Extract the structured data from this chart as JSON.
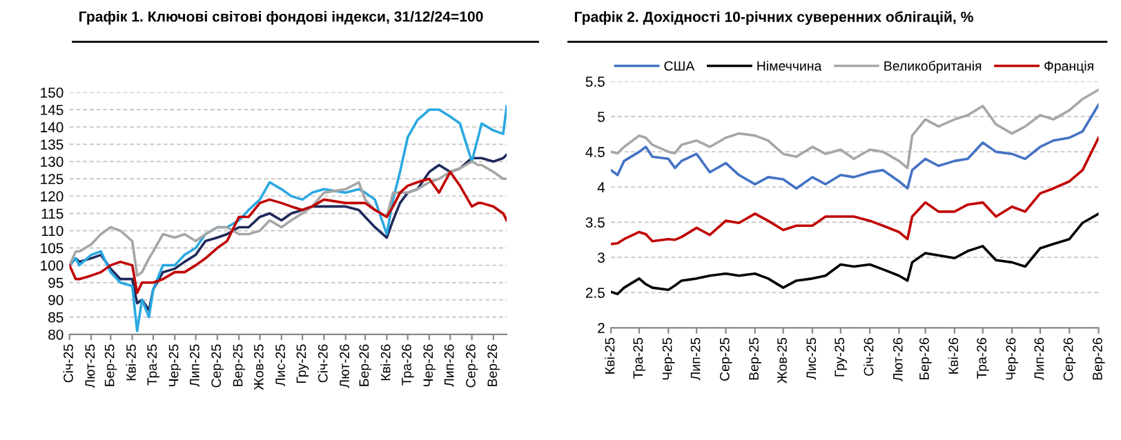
{
  "chart_data": [
    {
      "type": "line",
      "title": "Графік 1. Ключові світові фондові індекси, 31/12/24=100",
      "x": [
        "2025-01-01",
        "2025-01-10",
        "2025-01-15",
        "2025-02-01",
        "2025-02-15",
        "2025-03-01",
        "2025-03-15",
        "2025-04-01",
        "2025-04-08",
        "2025-04-15",
        "2025-04-25",
        "2025-05-01",
        "2025-05-15",
        "2025-06-01",
        "2025-06-15",
        "2025-07-01",
        "2025-07-15",
        "2025-08-01",
        "2025-08-15",
        "2025-09-01",
        "2025-09-15",
        "2025-10-01",
        "2025-10-15",
        "2025-11-01",
        "2025-11-15",
        "2025-12-01",
        "2025-12-15",
        "2026-01-01",
        "2026-02-01",
        "2026-02-20",
        "2026-03-01",
        "2026-03-15",
        "2026-04-01",
        "2026-04-10",
        "2026-04-20",
        "2026-05-01",
        "2026-05-15",
        "2026-06-01",
        "2026-06-15",
        "2026-07-01",
        "2026-07-15",
        "2026-08-01",
        "2026-08-10",
        "2026-08-15",
        "2026-09-01",
        "2026-09-15",
        "2026-09-20"
      ],
      "series": [
        {
          "color": "#1f2a5c",
          "values": [
            100,
            102,
            101,
            102,
            103,
            99,
            96,
            96,
            89,
            90,
            87,
            93,
            98,
            99,
            101,
            103,
            107,
            108,
            109,
            111,
            111,
            114,
            115,
            113,
            115,
            116,
            117,
            117,
            117,
            116,
            114,
            111,
            108,
            113,
            118,
            121,
            122,
            127,
            129,
            127,
            128,
            131,
            131,
            131,
            130,
            131,
            132
          ]
        },
        {
          "color": "#2aa8e0",
          "values": [
            100,
            102,
            100,
            103,
            104,
            98,
            95,
            94,
            81,
            90,
            85,
            93,
            100,
            100,
            103,
            105,
            109,
            111,
            111,
            113,
            116,
            119,
            124,
            122,
            120,
            119,
            121,
            122,
            121,
            122,
            121,
            119,
            109,
            119,
            127,
            137,
            142,
            145,
            145,
            143,
            141,
            130,
            137,
            141,
            139,
            138,
            146
          ]
        },
        {
          "color": "#a6a6a6",
          "values": [
            100,
            104,
            104,
            106,
            109,
            111,
            110,
            107,
            97,
            98,
            102,
            104,
            109,
            108,
            109,
            107,
            109,
            111,
            111,
            109,
            109,
            110,
            113,
            111,
            113,
            115,
            117,
            121,
            122,
            124,
            119,
            116,
            114,
            121,
            121,
            121,
            122,
            124,
            125,
            127,
            128,
            130,
            129,
            129,
            127,
            125,
            125
          ]
        },
        {
          "color": "#c00000",
          "values": [
            100,
            96,
            96,
            97,
            98,
            100,
            101,
            100,
            92,
            95,
            95,
            95,
            96,
            98,
            98,
            100,
            102,
            105,
            107,
            114,
            114,
            118,
            119,
            118,
            117,
            116,
            117,
            119,
            118,
            118,
            118,
            116,
            114,
            117,
            121,
            123,
            124,
            125,
            121,
            127,
            123,
            117,
            118,
            118,
            117,
            115,
            113
          ]
        }
      ],
      "xlim": [
        "2025-01-01",
        "2026-09-20"
      ],
      "xticks": [
        {
          "value": "2025-01-01",
          "label": "Січ-25"
        },
        {
          "value": "2025-02-01",
          "label": "Лют-25"
        },
        {
          "value": "2025-03-01",
          "label": "Бер-25"
        },
        {
          "value": "2025-04-01",
          "label": "Кві-25"
        },
        {
          "value": "2025-05-01",
          "label": "Тра-25"
        },
        {
          "value": "2025-06-01",
          "label": "Чер-25"
        },
        {
          "value": "2025-07-01",
          "label": "Лип-25"
        },
        {
          "value": "2025-08-01",
          "label": "Сер-25"
        },
        {
          "value": "2025-09-01",
          "label": "Вер-25"
        },
        {
          "value": "2025-10-01",
          "label": "Жов-25"
        },
        {
          "value": "2025-11-01",
          "label": "Лис-25"
        },
        {
          "value": "2025-12-01",
          "label": "Гру-25"
        },
        {
          "value": "2026-01-01",
          "label": "Січ-26"
        },
        {
          "value": "2026-02-01",
          "label": "Лют-26"
        },
        {
          "value": "2026-03-01",
          "label": "Бер-26"
        },
        {
          "value": "2026-04-01",
          "label": "Кві-26"
        },
        {
          "value": "2026-05-01",
          "label": "Тра-26"
        },
        {
          "value": "2026-06-01",
          "label": "Чер-26"
        },
        {
          "value": "2026-07-01",
          "label": "Лип-26"
        },
        {
          "value": "2026-08-01",
          "label": "Сер-26"
        },
        {
          "value": "2026-09-01",
          "label": "Вер-26"
        }
      ],
      "ylim": [
        80,
        150
      ],
      "yticks": [
        80,
        85,
        90,
        95,
        100,
        105,
        110,
        115,
        120,
        125,
        130,
        135,
        140,
        145,
        150
      ],
      "grid": "y"
    },
    {
      "type": "line",
      "title": "Графік 2. Дохідності 10-річних суверенних облігацій, %",
      "x": [
        "2025-04-01",
        "2025-04-08",
        "2025-04-15",
        "2025-05-01",
        "2025-05-08",
        "2025-05-15",
        "2025-06-01",
        "2025-06-08",
        "2025-06-15",
        "2025-07-01",
        "2025-07-15",
        "2025-08-01",
        "2025-08-15",
        "2025-09-01",
        "2025-09-15",
        "2025-10-01",
        "2025-10-15",
        "2025-11-01",
        "2025-11-15",
        "2025-12-01",
        "2025-12-15",
        "2026-01-01",
        "2026-01-15",
        "2026-02-01",
        "2026-02-10",
        "2026-02-15",
        "2026-03-01",
        "2026-03-15",
        "2026-04-01",
        "2026-04-15",
        "2026-05-01",
        "2026-05-15",
        "2026-06-01",
        "2026-06-15",
        "2026-07-01",
        "2026-07-15",
        "2026-08-01",
        "2026-08-15",
        "2026-09-01"
      ],
      "series": [
        {
          "name": "США",
          "color": "#4472c4",
          "values": [
            4.24,
            4.17,
            4.37,
            4.5,
            4.57,
            4.43,
            4.4,
            4.27,
            4.37,
            4.47,
            4.21,
            4.34,
            4.17,
            4.04,
            4.14,
            4.11,
            3.98,
            4.14,
            4.04,
            4.17,
            4.14,
            4.21,
            4.24,
            4.08,
            3.98,
            4.24,
            4.4,
            4.3,
            4.37,
            4.4,
            4.63,
            4.5,
            4.47,
            4.4,
            4.57,
            4.66,
            4.7,
            4.79,
            5.17
          ]
        },
        {
          "name": "Німеччина",
          "color": "#000000",
          "values": [
            2.51,
            2.48,
            2.57,
            2.7,
            2.62,
            2.57,
            2.54,
            2.6,
            2.67,
            2.7,
            2.74,
            2.77,
            2.74,
            2.77,
            2.7,
            2.57,
            2.67,
            2.7,
            2.74,
            2.9,
            2.87,
            2.9,
            2.83,
            2.74,
            2.67,
            2.93,
            3.06,
            3.03,
            2.99,
            3.09,
            3.16,
            2.96,
            2.93,
            2.87,
            3.13,
            3.19,
            3.26,
            3.49,
            3.62
          ]
        },
        {
          "name": "Великобританія",
          "color": "#a6a6a6",
          "values": [
            4.5,
            4.48,
            4.57,
            4.73,
            4.7,
            4.6,
            4.5,
            4.48,
            4.6,
            4.66,
            4.57,
            4.7,
            4.76,
            4.73,
            4.66,
            4.47,
            4.43,
            4.57,
            4.47,
            4.53,
            4.4,
            4.53,
            4.5,
            4.37,
            4.27,
            4.73,
            4.96,
            4.86,
            4.96,
            5.02,
            5.15,
            4.89,
            4.76,
            4.86,
            5.02,
            4.96,
            5.09,
            5.25,
            5.38
          ]
        },
        {
          "name": "Франція",
          "color": "#c00000",
          "values": [
            3.19,
            3.2,
            3.26,
            3.36,
            3.33,
            3.23,
            3.26,
            3.25,
            3.29,
            3.42,
            3.32,
            3.52,
            3.49,
            3.62,
            3.52,
            3.39,
            3.45,
            3.45,
            3.58,
            3.58,
            3.58,
            3.52,
            3.45,
            3.36,
            3.26,
            3.58,
            3.78,
            3.65,
            3.65,
            3.75,
            3.78,
            3.58,
            3.72,
            3.65,
            3.91,
            3.98,
            4.08,
            4.24,
            4.7
          ]
        }
      ],
      "xlim": [
        "2025-04-01",
        "2026-09-01"
      ],
      "xticks": [
        {
          "value": "2025-04-01",
          "label": "Кві-25"
        },
        {
          "value": "2025-05-01",
          "label": "Тра-25"
        },
        {
          "value": "2025-06-01",
          "label": "Чер-25"
        },
        {
          "value": "2025-07-01",
          "label": "Лип-25"
        },
        {
          "value": "2025-08-01",
          "label": "Сер-25"
        },
        {
          "value": "2025-09-01",
          "label": "Вер-25"
        },
        {
          "value": "2025-10-01",
          "label": "Жов-25"
        },
        {
          "value": "2025-11-01",
          "label": "Лис-25"
        },
        {
          "value": "2025-12-01",
          "label": "Гру-25"
        },
        {
          "value": "2026-01-01",
          "label": "Січ-26"
        },
        {
          "value": "2026-02-01",
          "label": "Лют-26"
        },
        {
          "value": "2026-03-01",
          "label": "Бер-26"
        },
        {
          "value": "2026-04-01",
          "label": "Кві-26"
        },
        {
          "value": "2026-05-01",
          "label": "Тра-26"
        },
        {
          "value": "2026-06-01",
          "label": "Чер-26"
        },
        {
          "value": "2026-07-01",
          "label": "Лип-26"
        },
        {
          "value": "2026-08-01",
          "label": "Сер-26"
        },
        {
          "value": "2026-09-01",
          "label": "Вер-26"
        }
      ],
      "ylim": [
        2,
        5.5
      ],
      "yticks": [
        2,
        2.5,
        3,
        3.5,
        4,
        4.5,
        5,
        5.5
      ],
      "grid": "y",
      "legend": "top"
    }
  ]
}
